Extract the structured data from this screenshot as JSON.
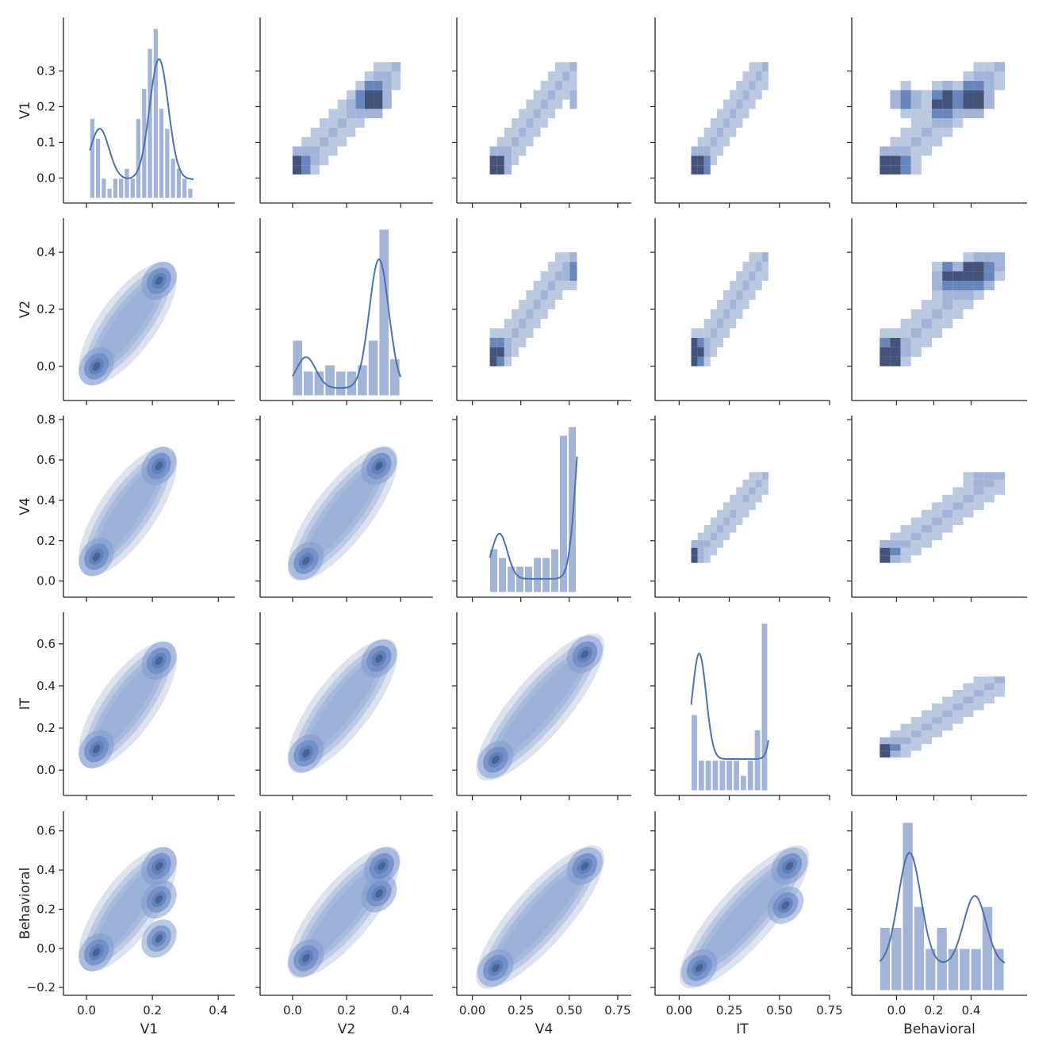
{
  "chart_data": {
    "type": "pairplot",
    "variables": [
      "V1",
      "V2",
      "V4",
      "IT",
      "Behavioral"
    ],
    "layout": {
      "upper": "hist2d",
      "diagonal": "hist+kde",
      "lower": "kde"
    },
    "colors": {
      "main": "#4c72b0",
      "hist_fill": "#a3b5d6",
      "dense": "#3a4a72",
      "axis": "#262626"
    },
    "axes": {
      "V1": {
        "range": [
          -0.07,
          0.45
        ],
        "ticks": [
          0.0,
          0.1,
          0.2,
          0.3
        ],
        "x_ticks": [
          0.0,
          0.2,
          0.4
        ],
        "tick_labels": [
          "0.0",
          "0.1",
          "0.2",
          "0.3"
        ],
        "x_tick_labels": [
          "0.0",
          "0.2",
          "0.4"
        ]
      },
      "V2": {
        "range": [
          -0.12,
          0.52
        ],
        "ticks": [
          0.0,
          0.2,
          0.4
        ],
        "x_ticks": [
          0.0,
          0.2,
          0.4
        ],
        "tick_labels": [
          "0.0",
          "0.2",
          "0.4"
        ],
        "x_tick_labels": [
          "0.0",
          "0.2",
          "0.4"
        ]
      },
      "V4": {
        "range": [
          -0.08,
          0.82
        ],
        "ticks": [
          0.0,
          0.2,
          0.4,
          0.6,
          0.8
        ],
        "x_ticks": [
          0.0,
          0.25,
          0.5,
          0.75
        ],
        "tick_labels": [
          "0.0",
          "0.2",
          "0.4",
          "0.6",
          "0.8"
        ],
        "x_tick_labels": [
          "0.00",
          "0.25",
          "0.50",
          "0.75"
        ]
      },
      "IT": {
        "range": [
          -0.12,
          0.75
        ],
        "ticks": [
          0.0,
          0.2,
          0.4,
          0.6
        ],
        "x_ticks": [
          0.0,
          0.25,
          0.5,
          0.75
        ],
        "tick_labels": [
          "0.0",
          "0.2",
          "0.4",
          "0.6"
        ],
        "x_tick_labels": [
          "0.00",
          "0.25",
          "0.50",
          "0.75"
        ]
      },
      "Behavioral": {
        "range": [
          -0.24,
          0.7
        ],
        "ticks": [
          -0.2,
          0.0,
          0.2,
          0.4,
          0.6
        ],
        "x_ticks": [
          0.0,
          0.2,
          0.4
        ],
        "tick_labels": [
          "−0.2",
          "0.0",
          "0.2",
          "0.4",
          "0.6"
        ],
        "x_tick_labels": [
          "0.0",
          "0.2",
          "0.4"
        ]
      }
    },
    "histograms": {
      "V1": {
        "bin_start": 0.01,
        "bin_width": 0.0175,
        "counts": [
          8,
          6,
          2,
          1,
          2,
          2,
          3,
          2,
          8,
          11,
          15,
          17,
          9,
          7,
          4,
          3,
          2,
          1
        ],
        "kde_peaks": [
          [
            0.04,
            0.08
          ],
          [
            0.22,
            0.19
          ]
        ]
      },
      "V2": {
        "bin_start": 0.0,
        "bin_width": 0.04,
        "counts": [
          9,
          4,
          4,
          5,
          4,
          4,
          5,
          9,
          27,
          6
        ],
        "kde_peaks": [
          [
            0.05,
            0.12
          ],
          [
            0.32,
            0.5
          ]
        ]
      },
      "V4": {
        "bin_start": 0.09,
        "bin_width": 0.045,
        "counts": [
          5,
          4,
          3,
          3,
          3,
          4,
          4,
          5,
          18,
          19
        ],
        "kde_peaks": [
          [
            0.14,
            0.1
          ],
          [
            0.58,
            0.44
          ]
        ]
      },
      "IT": {
        "bin_start": 0.06,
        "bin_width": 0.035,
        "counts": [
          5,
          2,
          2,
          2,
          2,
          2,
          2,
          1,
          2,
          4,
          11
        ],
        "kde_peaks": [
          [
            0.1,
            0.1
          ],
          [
            0.53,
            0.36
          ]
        ]
      },
      "Behavioral": {
        "bin_start": -0.09,
        "bin_width": 0.061,
        "counts": [
          3,
          3,
          8,
          4,
          2,
          3,
          2,
          2,
          2,
          4,
          2
        ],
        "kde_peaks": [
          [
            0.07,
            0.13
          ],
          [
            0.42,
            0.08
          ]
        ]
      }
    },
    "kde_clusters": {
      "V1|V2": [
        [
          0.03,
          0.0
        ],
        [
          0.22,
          0.3
        ]
      ],
      "V1|V4": [
        [
          0.03,
          0.12
        ],
        [
          0.22,
          0.57
        ]
      ],
      "V1|IT": [
        [
          0.03,
          0.1
        ],
        [
          0.22,
          0.52
        ]
      ],
      "V1|Behavioral": [
        [
          0.03,
          -0.02
        ],
        [
          0.22,
          0.05
        ],
        [
          0.22,
          0.25
        ],
        [
          0.22,
          0.42
        ]
      ],
      "V2|V4": [
        [
          0.05,
          0.1
        ],
        [
          0.32,
          0.57
        ]
      ],
      "V2|IT": [
        [
          0.05,
          0.08
        ],
        [
          0.32,
          0.53
        ]
      ],
      "V2|Behavioral": [
        [
          0.05,
          -0.05
        ],
        [
          0.32,
          0.28
        ],
        [
          0.33,
          0.42
        ]
      ],
      "V4|IT": [
        [
          0.12,
          0.05
        ],
        [
          0.58,
          0.55
        ]
      ],
      "V4|Behavioral": [
        [
          0.12,
          -0.1
        ],
        [
          0.58,
          0.42
        ]
      ],
      "IT|Behavioral": [
        [
          0.1,
          -0.1
        ],
        [
          0.53,
          0.22
        ],
        [
          0.55,
          0.42
        ]
      ]
    }
  }
}
